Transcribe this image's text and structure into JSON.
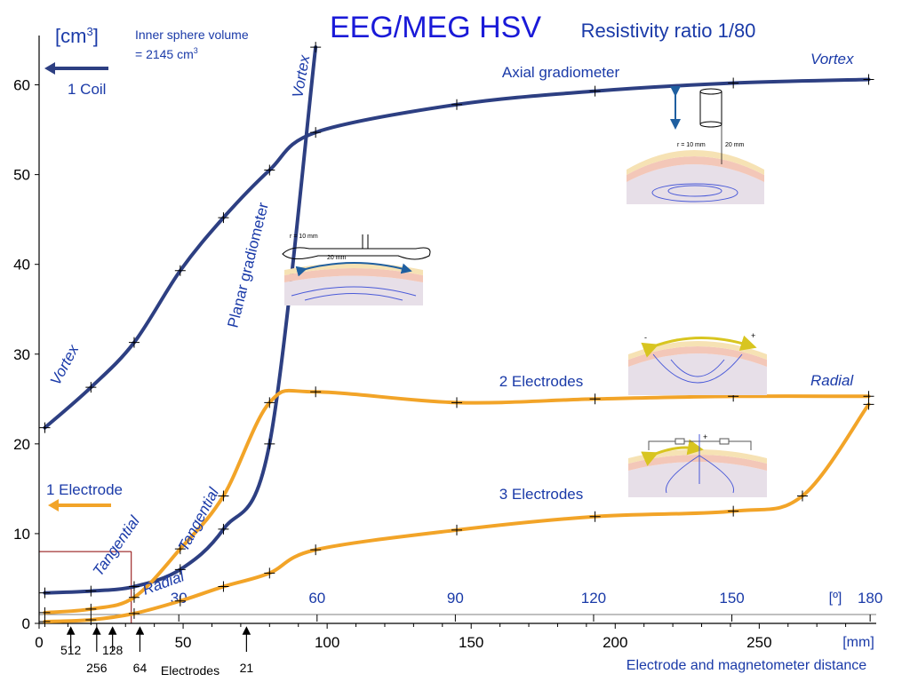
{
  "chart_data": {
    "type": "line",
    "title": "EEG/MEG HSV",
    "subtitle": "Resistivity ratio 1/80",
    "ylabel": "[cm",
    "ylabel_sup": "3",
    "ylabel_close": "]",
    "xlabel": "Electrode and magnetometer distance",
    "x_unit_mm": "[mm]",
    "x_unit_deg": "[º]",
    "ylim": [
      0,
      65
    ],
    "xlim_mm": [
      0,
      290
    ],
    "y_ticks": [
      "0",
      "10",
      "20",
      "30",
      "40",
      "50",
      "60"
    ],
    "y_tick_values": [
      0,
      10,
      20,
      30,
      40,
      50,
      60
    ],
    "x_ticks_mm": [
      "0",
      "50",
      "100",
      "150",
      "200",
      "250"
    ],
    "x_tick_mm_values": [
      0,
      50,
      100,
      150,
      200,
      250
    ],
    "x_ticks_deg": [
      "30",
      "60",
      "90",
      "120",
      "150",
      "180"
    ],
    "x_tick_deg_mm": [
      48.5,
      96.5,
      144.5,
      192.5,
      240.5,
      288.5
    ],
    "grid": false,
    "legend": "none",
    "inner_volume_line1": "Inner sphere volume",
    "inner_volume_line2": "= 2145 cm",
    "inner_volume_sup": "3",
    "coil_label": "1 Coil",
    "electrode_label": "1 Electrode",
    "electrode_counts": [
      "512",
      "256",
      "128",
      "64",
      "21"
    ],
    "electrode_count_mm": [
      11,
      20,
      25.5,
      35,
      72
    ],
    "electrodes_word": "Electrodes",
    "reference_point": {
      "x_mm": 32,
      "y": 8
    },
    "colors": {
      "meg": "#2d3f82",
      "eeg": "#f2a428",
      "text_blue": "#1a3aa8",
      "title": "#1a1ad8",
      "ref_line": "#8b0000"
    },
    "series": [
      {
        "name": "Axial gradiometer",
        "kind": "meg",
        "x": [
          2,
          18,
          33,
          49,
          64,
          80,
          96,
          145,
          193,
          241,
          288
        ],
        "y": [
          21.8,
          26.3,
          31.3,
          39.3,
          45.2,
          50.5,
          54.7,
          57.8,
          59.3,
          60.2,
          60.6
        ]
      },
      {
        "name": "Planar gradiometer",
        "kind": "meg",
        "x": [
          2,
          18,
          33,
          49,
          64,
          80,
          96
        ],
        "y": [
          3.4,
          3.6,
          4.1,
          6,
          10.5,
          20,
          64.2
        ]
      },
      {
        "name": "2 Electrodes",
        "kind": "eeg",
        "x": [
          2,
          18,
          33,
          49,
          64,
          80,
          96,
          145,
          193,
          241,
          288
        ],
        "y": [
          1.2,
          1.6,
          2.9,
          8.3,
          14.2,
          24.6,
          25.8,
          24.6,
          25,
          25.3,
          25.3
        ]
      },
      {
        "name": "3 Electrodes",
        "kind": "eeg",
        "x": [
          2,
          18,
          33,
          49,
          64,
          80,
          96,
          145,
          193,
          241,
          265,
          288
        ],
        "y": [
          0.2,
          0.4,
          1.1,
          2.5,
          4.1,
          5.6,
          8.2,
          10.4,
          11.9,
          12.5,
          14.2,
          24.4
        ]
      }
    ],
    "annotations": {
      "vortex": "Vortex",
      "tangential": "Tangential",
      "radial": "Radial",
      "axial": "Axial gradiometer",
      "planar": "Planar gradiometer",
      "two_el": "2 Electrodes",
      "three_el": "3 Electrodes"
    },
    "inset_labels": {
      "r10": "r = 10 mm",
      "d20": "20 mm",
      "plus": "+",
      "minus": "-"
    }
  }
}
